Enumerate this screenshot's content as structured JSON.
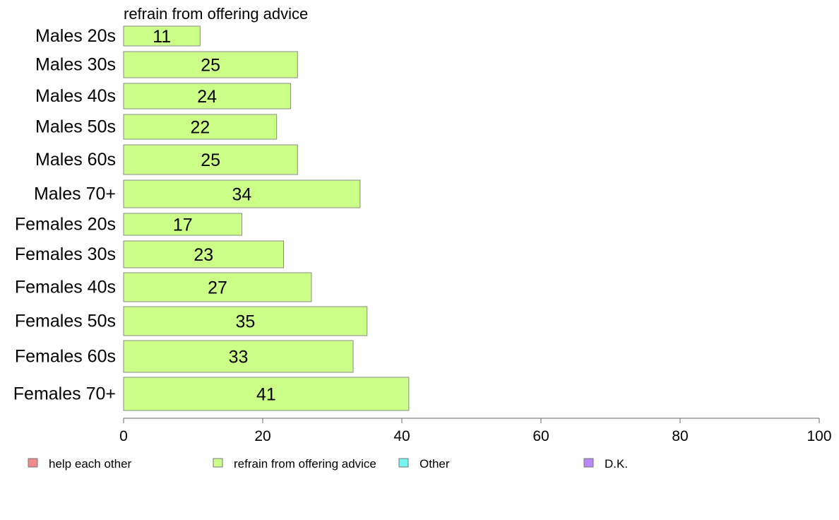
{
  "chart_data": {
    "type": "bar",
    "orientation": "horizontal",
    "title": "refrain from offering advice",
    "categories": [
      "Males 20s",
      "Males 30s",
      "Males 40s",
      "Males 50s",
      "Males 60s",
      "Males 70+",
      "Females 20s",
      "Females 30s",
      "Females 40s",
      "Females 50s",
      "Females 60s",
      "Females 70+"
    ],
    "series": [
      {
        "name": "refrain from offering advice",
        "color": "#ccff88",
        "values": [
          11,
          25,
          24,
          22,
          25,
          34,
          17,
          23,
          27,
          35,
          33,
          41
        ]
      }
    ],
    "xlim": [
      0,
      100
    ],
    "xticks": [
      0,
      20,
      40,
      60,
      80,
      100
    ],
    "grid": false,
    "legend_position": "bottom",
    "legend": [
      {
        "label": "help each other",
        "color": "#f28b8b"
      },
      {
        "label": "refrain from offering advice",
        "color": "#ccff88"
      },
      {
        "label": "Other",
        "color": "#77f5f0"
      },
      {
        "label": "D.K.",
        "color": "#b98af5"
      }
    ]
  }
}
